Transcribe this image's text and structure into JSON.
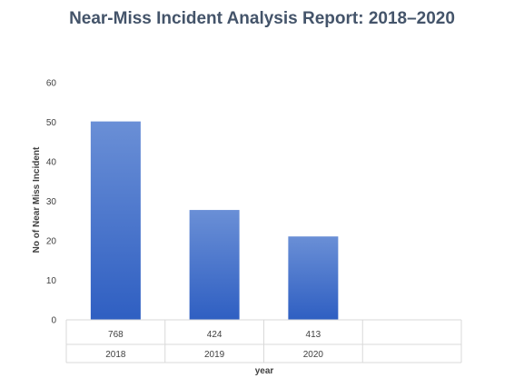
{
  "chart_data": {
    "type": "bar",
    "title": "Near-Miss Incident Analysis Report: 2018–2020",
    "xlabel": "year",
    "ylabel": "No of Near Miss Incident",
    "categories": [
      "2018",
      "2019",
      "2020"
    ],
    "values": [
      50.2,
      27.8,
      21.1
    ],
    "table_row": [
      "768",
      "424",
      "413"
    ],
    "yticks": [
      "0",
      "10",
      "20",
      "30",
      "40",
      "50",
      "60"
    ],
    "ylim": [
      0,
      60
    ],
    "grid": false,
    "legend": "none",
    "colors": {
      "bar_top": "#6a8fd6",
      "bar_bottom": "#2f5fc2",
      "table_lines": "#d9d9d9",
      "title": "#44546a",
      "text": "#404040"
    }
  }
}
